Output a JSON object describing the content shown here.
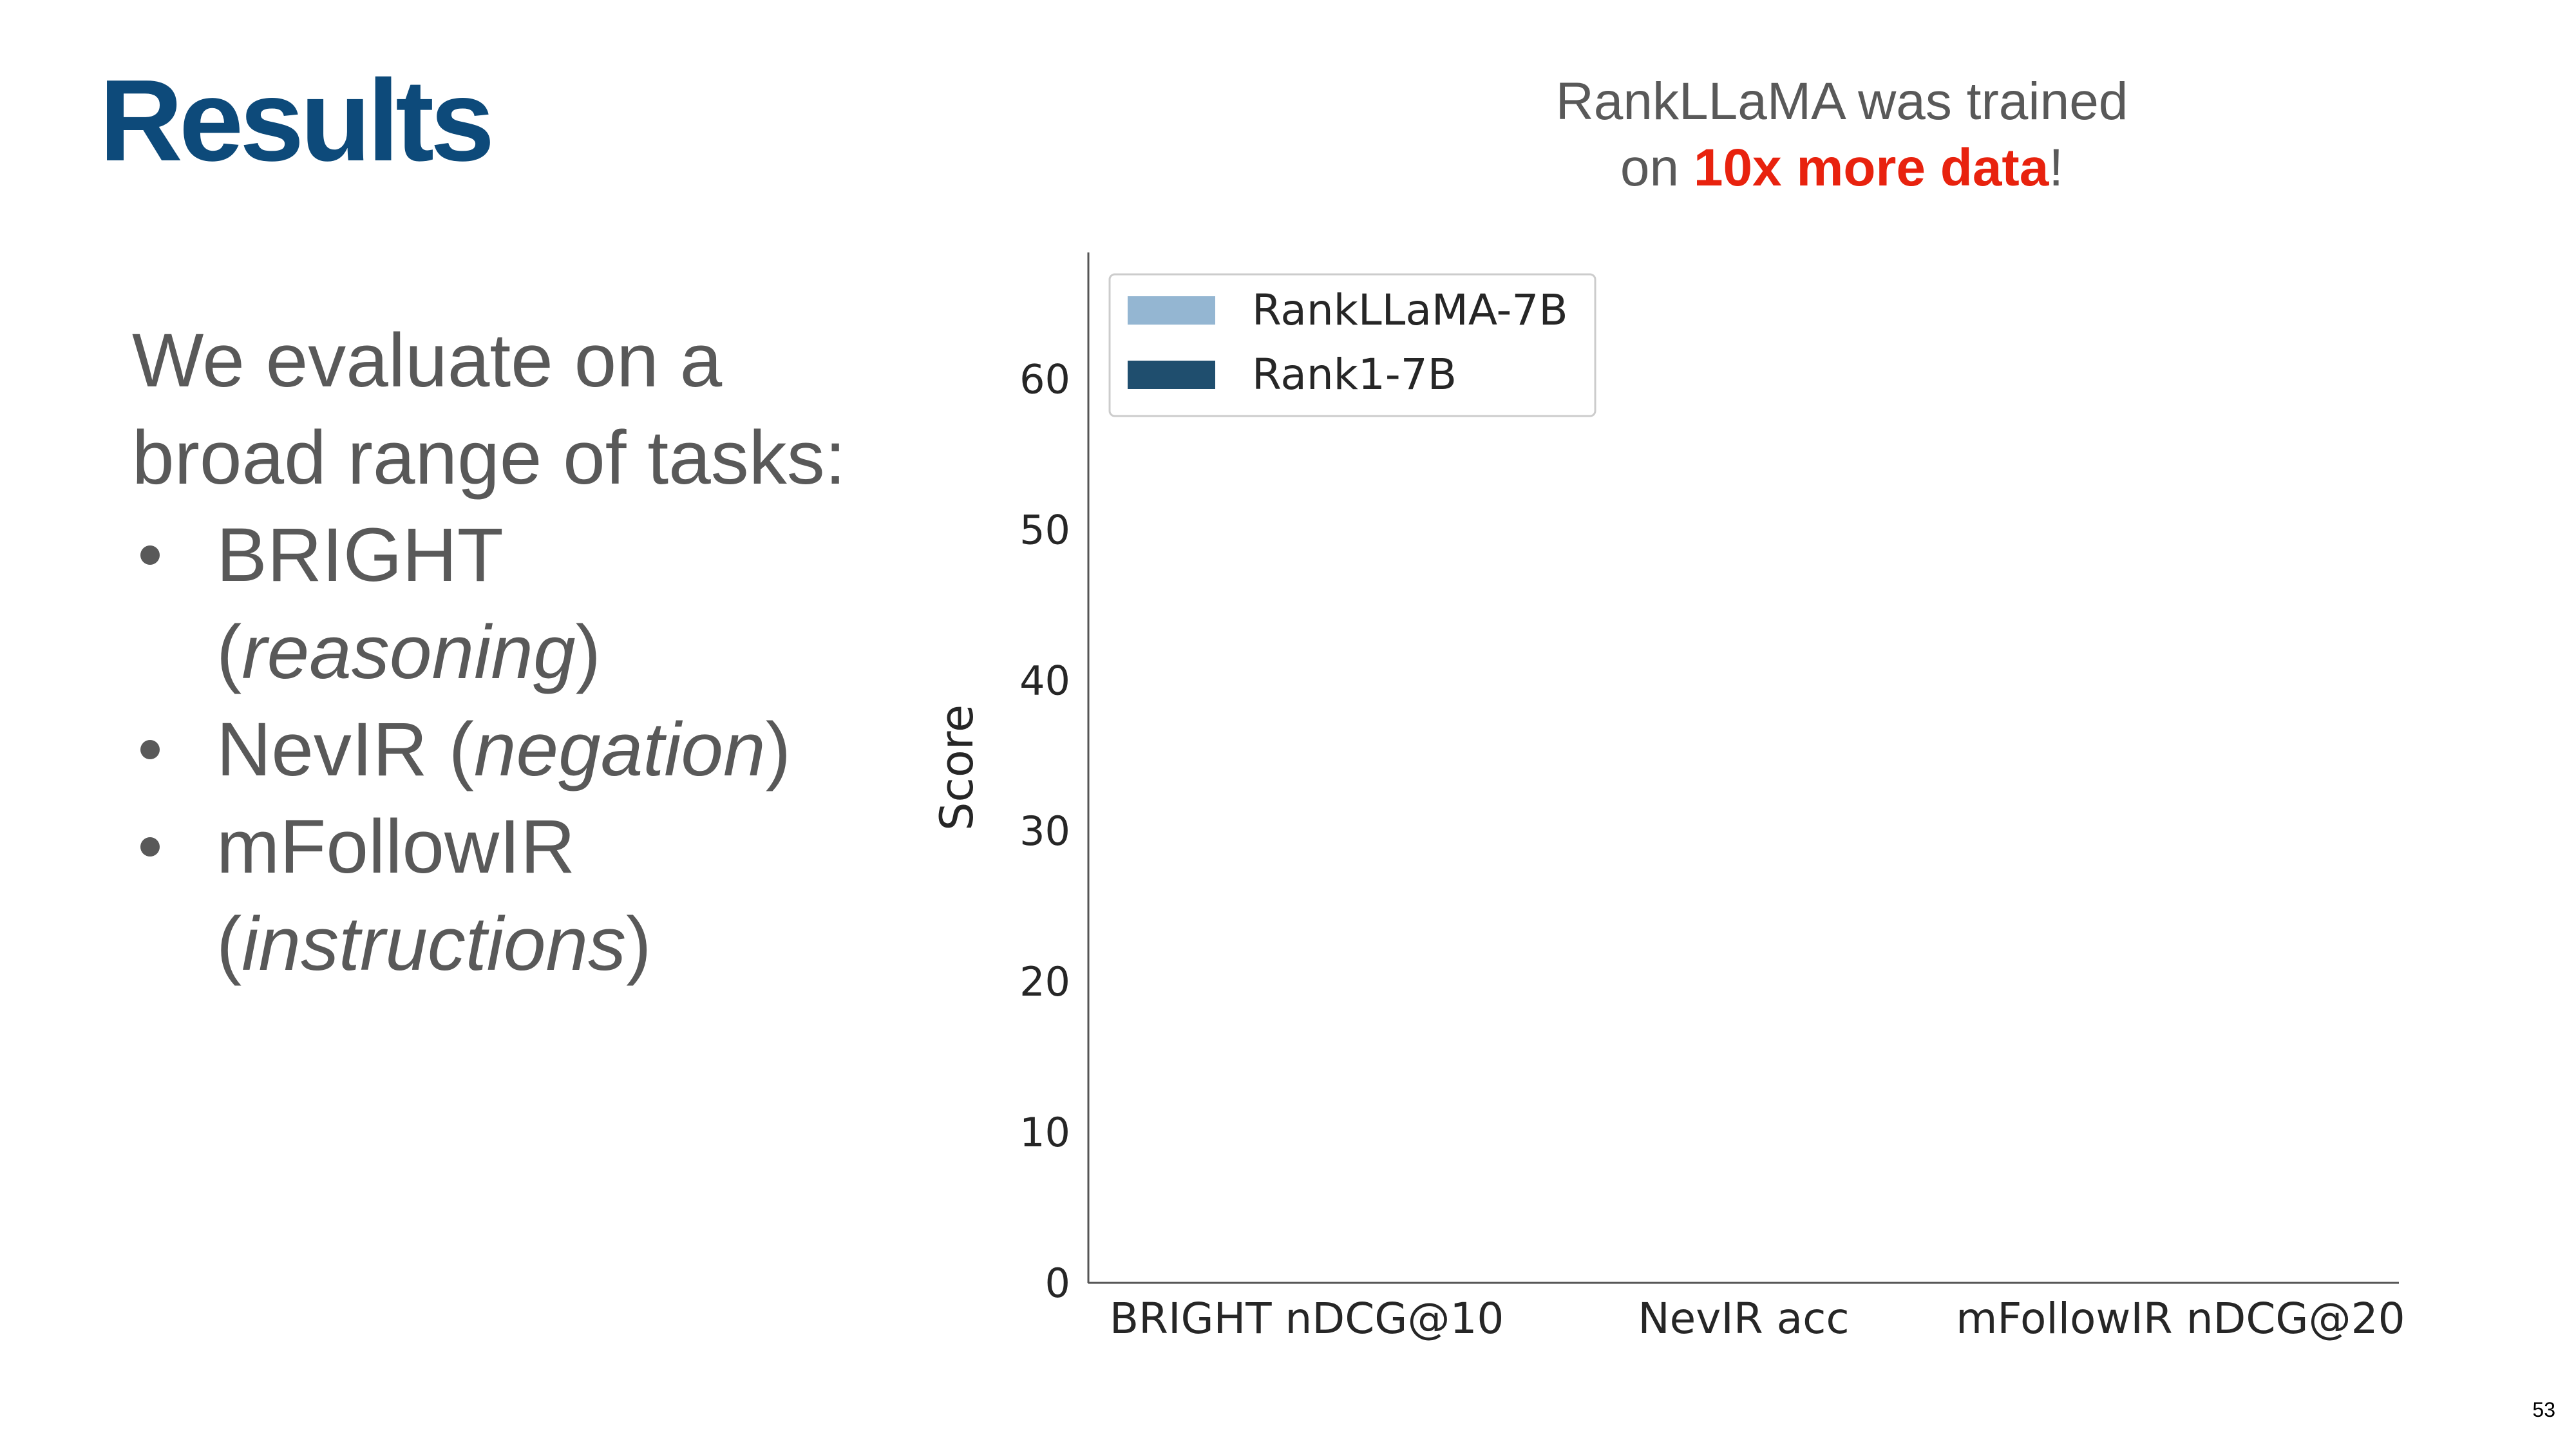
{
  "slide": {
    "title": "Results",
    "annotation": {
      "line1": "RankLLaMA was trained",
      "line2": [
        {
          "text": "on "
        },
        {
          "text": "10x more data",
          "highlight": true
        },
        {
          "text": "!"
        }
      ]
    },
    "intro": [
      "We evaluate on a",
      "broad range of tasks:"
    ],
    "bullets": [
      {
        "lines": [
          [
            {
              "text": "BRIGHT"
            }
          ],
          [
            {
              "text": "("
            },
            {
              "text": "reasoning",
              "italic": true
            },
            {
              "text": ")"
            }
          ]
        ]
      },
      {
        "lines": [
          [
            {
              "text": "NevIR ("
            },
            {
              "text": "negation",
              "italic": true
            },
            {
              "text": ")"
            }
          ]
        ]
      },
      {
        "lines": [
          [
            {
              "text": "mFollowIR"
            }
          ],
          [
            {
              "text": "("
            },
            {
              "text": "instructions",
              "italic": true
            },
            {
              "text": ")"
            }
          ]
        ]
      }
    ],
    "page_number": "53"
  },
  "chart_data": {
    "type": "bar",
    "categories": [
      "BRIGHT nDCG@10",
      "NevIR acc",
      "mFollowIR nDCG@20"
    ],
    "series": [
      {
        "name": "RankLLaMA-7B",
        "color": "#94b6d2",
        "values": [
          null,
          null,
          null
        ]
      },
      {
        "name": "Rank1-7B",
        "color": "#1f4e6e",
        "values": [
          null,
          null,
          null
        ]
      }
    ],
    "ylabel": "Score",
    "ylim": [
      0,
      68.4
    ],
    "yticks": [
      0,
      10,
      20,
      30,
      40,
      50,
      60
    ],
    "legend": "upper left",
    "grid": false
  }
}
